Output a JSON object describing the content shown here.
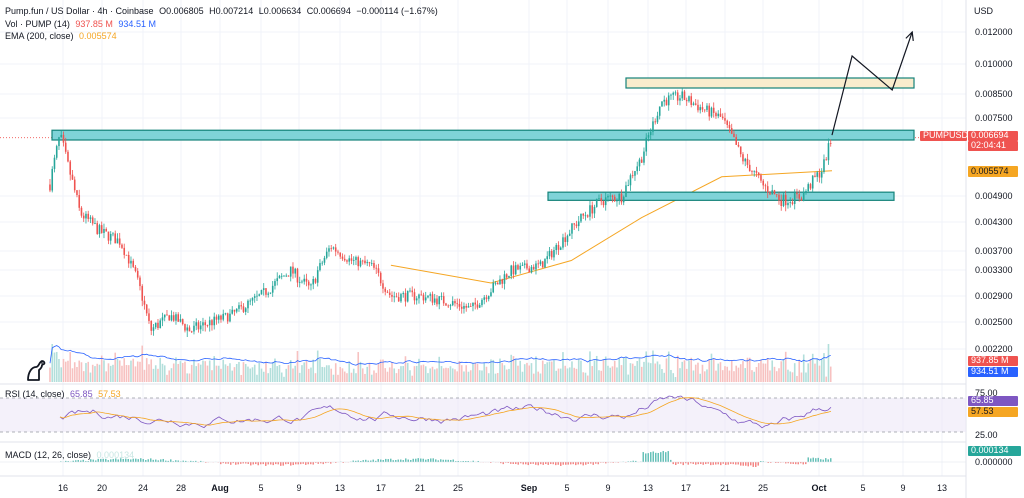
{
  "legend": {
    "symbol": "Pump.fun / US Dollar · 4h · Coinbase",
    "o": "O0.006805",
    "h": "H0.007214",
    "l": "L0.006634",
    "c": "C0.006694",
    "chg": "−0.000114 (−1.67%)",
    "vol_label": "Vol · PUMP (14)",
    "vol_a": "937.85 M",
    "vol_b": "934.51 M",
    "ema_label": "EMA (200, close)",
    "ema_val": "0.005574",
    "rsi_label": "RSI (14, close)",
    "rsi_a": "65.85",
    "rsi_b": "57.53",
    "macd_label": "MACD (12, 26, close)",
    "macd_val": "0.000134"
  },
  "currency": "USD",
  "price_axis": [
    "0.012000",
    "0.010000",
    "0.008500",
    "0.007500",
    "0.006600",
    "0.004900",
    "0.004300",
    "0.003700",
    "0.003300",
    "0.002900",
    "0.002500",
    "0.002200"
  ],
  "rsi_axis": [
    "75.00",
    "25.00"
  ],
  "macd_axis": [
    "0.000000"
  ],
  "time_axis": [
    "16",
    "20",
    "24",
    "28",
    "Aug",
    "5",
    "9",
    "13",
    "17",
    "21",
    "25",
    "Sep",
    "5",
    "9",
    "13",
    "17",
    "21",
    "25",
    "Oct",
    "5",
    "9",
    "13"
  ],
  "tags": {
    "symbol": "PUMPUSD",
    "price": "0.006694",
    "countdown": "02:04:41",
    "ema": "0.005574",
    "vol_a": "937.85 M",
    "vol_b": "934.51 M",
    "rsi_a": "65.85",
    "rsi_b": "57.53",
    "macd": "0.000134"
  },
  "colors": {
    "up": "#26a69a",
    "down": "#ef5350",
    "ema": "#f5a623",
    "vol_ma": "#2962ff",
    "rsi": "#7e57c2",
    "rsi_ma": "#f5a623",
    "zone_fill": "#7fd3d8",
    "zone_stroke": "#14837a",
    "top_zone_fill": "#f9eccd",
    "price_tag": "#ef5350"
  },
  "chart_data": {
    "type": "candlestick",
    "title": "Pump.fun / US Dollar · 4h · Coinbase",
    "close_path": [
      [
        "Jul 15",
        0.0052
      ],
      [
        "Jul 16",
        0.0068
      ],
      [
        "Jul 17",
        0.0055
      ],
      [
        "Jul 18",
        0.0045
      ],
      [
        "Jul 20",
        0.0041
      ],
      [
        "Jul 22",
        0.0039
      ],
      [
        "Jul 24",
        0.003
      ],
      [
        "Jul 25",
        0.0024
      ],
      [
        "Jul 27",
        0.0026
      ],
      [
        "Jul 29",
        0.0024
      ],
      [
        "Jul 31",
        0.0025
      ],
      [
        "Aug 2",
        0.0026
      ],
      [
        "Aug 5",
        0.0029
      ],
      [
        "Aug 8",
        0.0033
      ],
      [
        "Aug 10",
        0.003
      ],
      [
        "Aug 12",
        0.0038
      ],
      [
        "Aug 14",
        0.0035
      ],
      [
        "Aug 16",
        0.0034
      ],
      [
        "Aug 18",
        0.0029
      ],
      [
        "Aug 21",
        0.0029
      ],
      [
        "Aug 24",
        0.0028
      ],
      [
        "Aug 26",
        0.0027
      ],
      [
        "Aug 28",
        0.003
      ],
      [
        "Aug 30",
        0.0033
      ],
      [
        "Sep 2",
        0.0034
      ],
      [
        "Sep 4",
        0.0039
      ],
      [
        "Sep 6",
        0.0044
      ],
      [
        "Sep 8",
        0.0048
      ],
      [
        "Sep 10",
        0.0049
      ],
      [
        "Sep 12",
        0.006
      ],
      [
        "Sep 14",
        0.0082
      ],
      [
        "Sep 16",
        0.0084
      ],
      [
        "Sep 18",
        0.0079
      ],
      [
        "Sep 20",
        0.0075
      ],
      [
        "Sep 22",
        0.006
      ],
      [
        "Sep 24",
        0.0052
      ],
      [
        "Sep 26",
        0.0048
      ],
      [
        "Sep 28",
        0.0049
      ],
      [
        "Sep 30",
        0.0056
      ],
      [
        "Oct 1",
        0.0067
      ]
    ],
    "ema_200": [
      [
        "Aug 18",
        0.0034
      ],
      [
        "Aug 28",
        0.0031
      ],
      [
        "Sep 5",
        0.0035
      ],
      [
        "Sep 12",
        0.0044
      ],
      [
        "Sep 20",
        0.0054
      ],
      [
        "Oct 1",
        0.005574
      ]
    ],
    "zones": [
      {
        "low": 0.0066,
        "high": 0.007
      },
      {
        "low": 0.0048,
        "high": 0.005
      },
      {
        "low": 0.0088,
        "high": 0.0093
      }
    ],
    "projection": [
      [
        "Oct 1",
        0.0068
      ],
      [
        "Oct 3",
        0.0105
      ],
      [
        "Oct 7",
        0.0087
      ],
      [
        "Oct 9",
        0.0122
      ]
    ],
    "last": {
      "open": 0.006805,
      "high": 0.007214,
      "low": 0.006634,
      "close": 0.006694
    },
    "ylabel": "USD"
  }
}
